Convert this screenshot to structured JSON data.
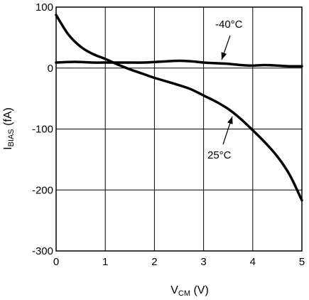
{
  "chart_data": {
    "type": "line",
    "title": "",
    "xlabel": {
      "main": "V",
      "sub": "CM",
      "unit": " (V)"
    },
    "ylabel": {
      "main": "I",
      "sub": "BIAS",
      "unit": " (fA)"
    },
    "xlim": [
      0,
      5
    ],
    "ylim": [
      -300,
      100
    ],
    "x_ticks": [
      0,
      1,
      2,
      3,
      4,
      5
    ],
    "y_ticks": [
      100,
      0,
      -100,
      -200,
      -300
    ],
    "x_tick_labels": [
      "0",
      "1",
      "2",
      "3",
      "4",
      "5"
    ],
    "y_tick_labels": [
      "100",
      "0",
      "-100",
      "-200",
      "-300"
    ],
    "grid": true,
    "series": [
      {
        "name": "-40°C",
        "x": [
          0,
          0.25,
          0.5,
          0.75,
          1,
          1.25,
          1.5,
          1.75,
          2,
          2.25,
          2.5,
          2.75,
          3,
          3.25,
          3.5,
          3.75,
          4,
          4.25,
          4.5,
          4.75,
          5
        ],
        "y": [
          9,
          10,
          10,
          9,
          9,
          9,
          9,
          9,
          10,
          11,
          12,
          11,
          9,
          8,
          7,
          5,
          4,
          5,
          4,
          3,
          3
        ]
      },
      {
        "name": "25°C",
        "x": [
          0,
          0.25,
          0.5,
          0.75,
          1,
          1.25,
          1.5,
          1.75,
          2,
          2.25,
          2.5,
          2.75,
          3,
          3.25,
          3.5,
          3.75,
          4,
          4.25,
          4.5,
          4.75,
          5
        ],
        "y": [
          87,
          55,
          35,
          23,
          15,
          6,
          -2,
          -9,
          -16,
          -22,
          -28,
          -35,
          -45,
          -55,
          -67,
          -83,
          -102,
          -122,
          -145,
          -175,
          -217
        ]
      }
    ],
    "annotations": [
      {
        "text": "-40°C",
        "series": "-40°C"
      },
      {
        "text": "25°C",
        "series": "25°C"
      }
    ]
  }
}
